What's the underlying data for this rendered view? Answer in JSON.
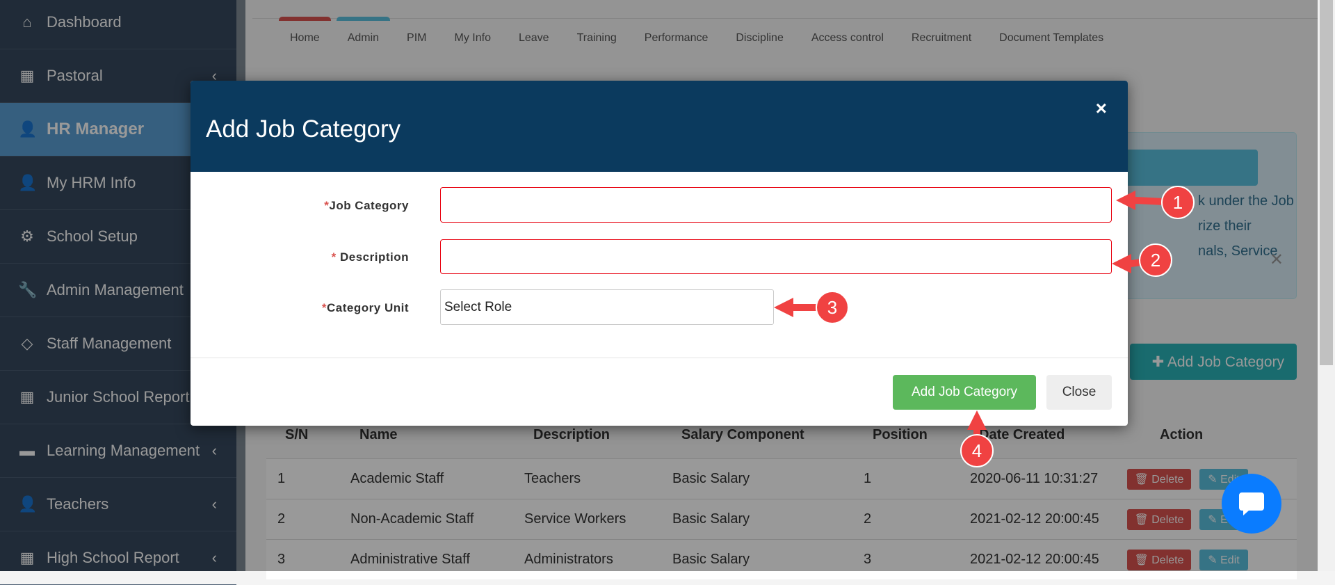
{
  "sidebar": {
    "items": [
      {
        "label": "Dashboard",
        "icon": "home-icon",
        "glyph": "⌂"
      },
      {
        "label": "Pastoral",
        "icon": "grid-icon",
        "glyph": "▦",
        "chevron": "‹"
      },
      {
        "label": "HR Manager",
        "icon": "users-icon",
        "glyph": "👤",
        "active": true
      },
      {
        "label": "My HRM Info",
        "icon": "user-icon",
        "glyph": "👤"
      },
      {
        "label": "School Setup",
        "icon": "gear-icon",
        "glyph": "⚙"
      },
      {
        "label": "Admin Management",
        "icon": "wrench-icon",
        "glyph": "🔧"
      },
      {
        "label": "Staff Management",
        "icon": "diamond-icon",
        "glyph": "◇"
      },
      {
        "label": "Junior School Report",
        "icon": "grid-icon",
        "glyph": "▦"
      },
      {
        "label": "Learning Management",
        "icon": "folder-icon",
        "glyph": "▬",
        "chevron": "‹"
      },
      {
        "label": "Teachers",
        "icon": "users-icon",
        "glyph": "👤",
        "chevron": "‹"
      },
      {
        "label": "High School Report",
        "icon": "grid-icon",
        "glyph": "▦",
        "chevron": "‹"
      }
    ]
  },
  "nav_tabs": [
    "Home",
    "Admin",
    "PIM",
    "My Info",
    "Leave",
    "Training",
    "Performance",
    "Discipline",
    "Access control",
    "Recruitment",
    "Document Templates"
  ],
  "alert": {
    "lines": [
      "k under the Job",
      "rize their",
      "nals, Service"
    ],
    "close": "✕"
  },
  "add_button_bg": "✚ Add Job Category",
  "table": {
    "headers": [
      "S/N",
      "Name",
      "Description",
      "Salary Component",
      "Position",
      "Date Created",
      "Action"
    ],
    "rows": [
      [
        "1",
        "Academic Staff",
        "Teachers",
        "Basic Salary",
        "1",
        "2020-06-11 10:31:27"
      ],
      [
        "2",
        "Non-Academic Staff",
        "Service Workers",
        "Basic Salary",
        "2",
        "2021-02-12 20:00:45"
      ],
      [
        "3",
        "Administrative Staff",
        "Administrators",
        "Basic Salary",
        "3",
        "2021-02-12 20:00:45"
      ]
    ],
    "delete_label": "🗑 Delete",
    "edit_label": "✎ Edit"
  },
  "modal": {
    "title": "Add Job Category",
    "close": "×",
    "fields": {
      "job_category": "Job Category",
      "description": " Description",
      "category_unit": "Category Unit",
      "required_mark": "*"
    },
    "select_value": "Select Role",
    "submit": "Add Job Category",
    "close_button": "Close"
  },
  "callouts": [
    "1",
    "2",
    "3",
    "4"
  ],
  "colors": {
    "sidebar": "#36495e",
    "active": "#5a9fd4",
    "modal_header": "#0b3a5e",
    "submit": "#5cb85c",
    "callout": "#f04242",
    "chat": "#0a7cff"
  }
}
